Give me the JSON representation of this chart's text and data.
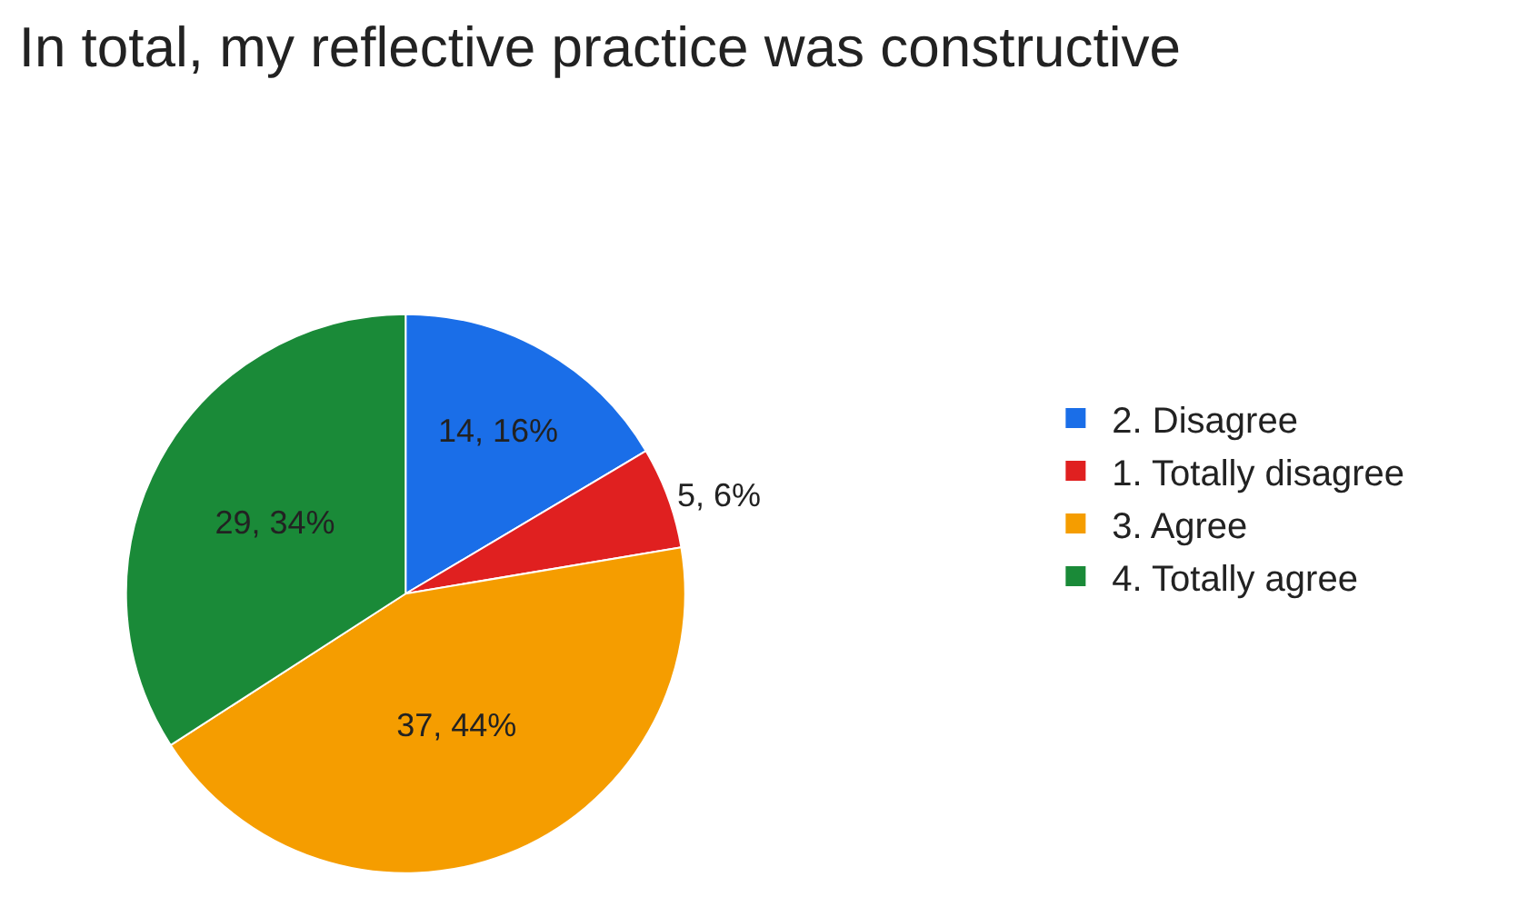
{
  "chart_data": {
    "type": "pie",
    "title": "In total, my reflective practice was constructive",
    "categories": [
      "2. Disagree",
      "1. Totally disagree",
      "3. Agree",
      "4. Totally agree"
    ],
    "values": [
      14,
      5,
      37,
      29
    ],
    "colors": [
      "#1a6ee8",
      "#e02020",
      "#f59d00",
      "#1a8a38"
    ],
    "value_labels": [
      "14, 16%",
      "5, 6%",
      "37, 44%",
      "29, 34%"
    ],
    "legend": "right"
  }
}
